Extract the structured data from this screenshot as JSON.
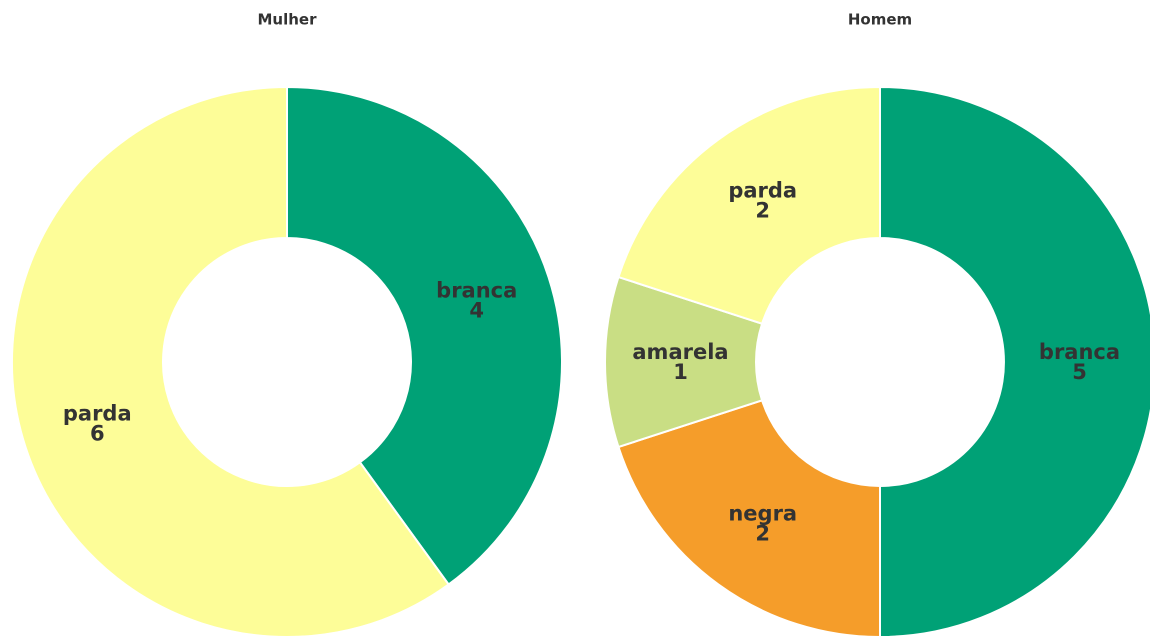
{
  "chart_data": [
    {
      "type": "pie",
      "title": "Mulher",
      "categories": [
        "branca",
        "parda"
      ],
      "values": [
        4,
        6
      ],
      "colors": [
        "#00a176",
        "#fdfd98"
      ]
    },
    {
      "type": "pie",
      "title": "Homem",
      "categories": [
        "branca",
        "negra",
        "amarela",
        "parda"
      ],
      "values": [
        5,
        2,
        1,
        2
      ],
      "colors": [
        "#00a176",
        "#f59d2a",
        "#c9de84",
        "#fdfd98"
      ]
    }
  ]
}
